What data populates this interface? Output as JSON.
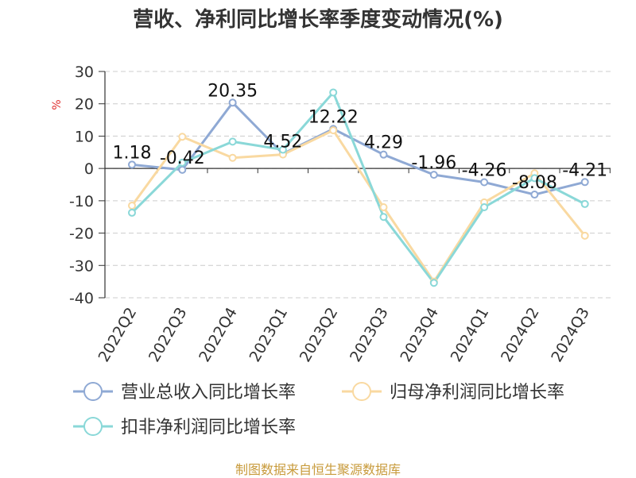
{
  "chart_data": {
    "type": "line",
    "title": "营收、净利同比增长率季度变动情况(%)",
    "ylabel": "%",
    "categories": [
      "2022Q2",
      "2022Q3",
      "2022Q4",
      "2023Q1",
      "2023Q2",
      "2023Q3",
      "2023Q4",
      "2024Q1",
      "2024Q2",
      "2024Q3"
    ],
    "ylim": [
      -40,
      30
    ],
    "yticks": [
      30,
      20,
      10,
      0,
      -10,
      -20,
      -30,
      -40
    ],
    "grid": true,
    "legend_position": "bottom",
    "series": [
      {
        "name": "营业总收入同比增长率",
        "color": "#8fa9d4",
        "values": [
          1.18,
          -0.42,
          20.35,
          4.52,
          12.22,
          4.29,
          -1.96,
          -4.26,
          -8.08,
          -4.21
        ],
        "labels": [
          "1.18",
          "-0.42",
          "20.35",
          "4.52",
          "12.22",
          "4.29",
          "-1.96",
          "-4.26",
          "-8.08",
          "-4.21"
        ]
      },
      {
        "name": "归母净利润同比增长率",
        "color": "#f9d9a1",
        "values": [
          -11.5,
          9.8,
          3.3,
          4.3,
          11.8,
          -12.0,
          -35.0,
          -10.5,
          -1.5,
          -20.8
        ]
      },
      {
        "name": "扣非净利润同比增长率",
        "color": "#8ad8d8",
        "values": [
          -13.7,
          1.8,
          8.3,
          5.8,
          23.5,
          -15.0,
          -35.4,
          -12.0,
          -3.0,
          -11.0
        ]
      }
    ]
  },
  "footer": "制图数据来自恒生聚源数据库"
}
